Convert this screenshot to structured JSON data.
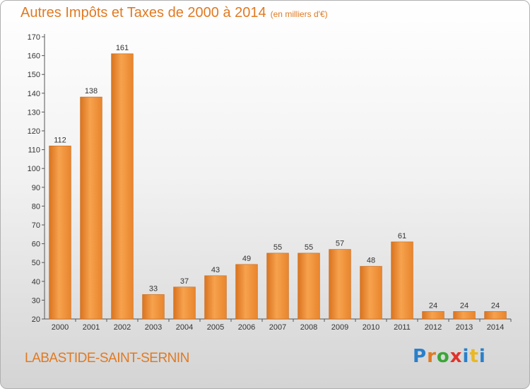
{
  "header": {
    "title": "Autres Impôts et Taxes de 2000 à 2014",
    "unit": "(en milliers d'€)"
  },
  "footer": {
    "commune": "LABASTIDE-SAINT-SERNIN",
    "brand": "Proxiti"
  },
  "colors": {
    "accent": "#e07a22",
    "bar_light": "#f5a452",
    "bar_dark": "#d9731f"
  },
  "chart_data": {
    "type": "bar",
    "categories": [
      "2000",
      "2001",
      "2002",
      "2003",
      "2004",
      "2005",
      "2006",
      "2007",
      "2008",
      "2009",
      "2010",
      "2011",
      "2012",
      "2013",
      "2014"
    ],
    "values": [
      112,
      138,
      161,
      33,
      37,
      43,
      49,
      55,
      55,
      57,
      48,
      61,
      24,
      24,
      24
    ],
    "title": "Autres Impôts et Taxes de 2000 à 2014",
    "ylim": [
      20,
      170
    ],
    "yticks": [
      20,
      30,
      40,
      50,
      60,
      70,
      80,
      90,
      100,
      110,
      120,
      130,
      140,
      150,
      160,
      170
    ],
    "grid": false,
    "legend": "none"
  }
}
